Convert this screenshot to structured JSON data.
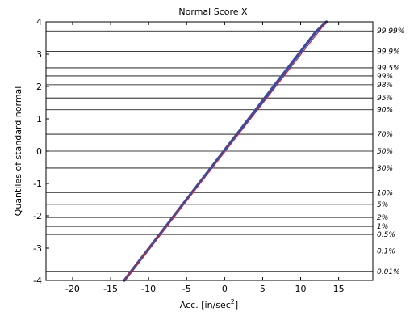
{
  "chart_data": {
    "type": "line",
    "title": "Normal Score X",
    "xlabel_base": "Acc. [in/sec",
    "xlabel_exp": "2",
    "xlabel_tail": "]",
    "ylabel": "Quantiles of standard normal",
    "xlim": [
      -23.5,
      19.5
    ],
    "ylim": [
      -4,
      4
    ],
    "x_ticks": [
      -20,
      -15,
      -10,
      -5,
      0,
      5,
      10,
      15
    ],
    "y_ticks": [
      -4,
      -3,
      -2,
      -1,
      0,
      1,
      2,
      3,
      4
    ],
    "grid": "horizontal lines at probability levels",
    "probability_levels": [
      {
        "label": "99.99%",
        "z": 3.719
      },
      {
        "label": "99.9%",
        "z": 3.09
      },
      {
        "label": "99.5%",
        "z": 2.576
      },
      {
        "label": "99%",
        "z": 2.326
      },
      {
        "label": "98%",
        "z": 2.054
      },
      {
        "label": "95%",
        "z": 1.645
      },
      {
        "label": "90%",
        "z": 1.282
      },
      {
        "label": "70%",
        "z": 0.524
      },
      {
        "label": "50%",
        "z": 0.0
      },
      {
        "label": "30%",
        "z": -0.524
      },
      {
        "label": "10%",
        "z": -1.282
      },
      {
        "label": "5%",
        "z": -1.645
      },
      {
        "label": "2%",
        "z": -2.054
      },
      {
        "label": "1%",
        "z": -2.326
      },
      {
        "label": "0.5%",
        "z": -2.576
      },
      {
        "label": "0.1%",
        "z": -3.09
      },
      {
        "label": "0.01%",
        "z": -3.719
      }
    ],
    "series": [
      {
        "kind": "data",
        "color": "#3a4aa8",
        "x": [
          -13.2,
          -12.0,
          -10.0,
          -8.0,
          -6.0,
          -4.0,
          -2.0,
          0.0,
          2.0,
          4.0,
          6.0,
          8.0,
          10.0,
          12.0,
          13.4
        ],
        "y": [
          -4.0,
          -3.63,
          -3.02,
          -2.41,
          -1.8,
          -1.19,
          -0.58,
          0.03,
          0.64,
          1.25,
          1.86,
          2.47,
          3.08,
          3.69,
          4.0
        ]
      },
      {
        "kind": "reference",
        "color": "#cc2222",
        "x": [
          -13.2,
          13.4
        ],
        "y": [
          -4.0,
          4.0
        ]
      }
    ]
  }
}
